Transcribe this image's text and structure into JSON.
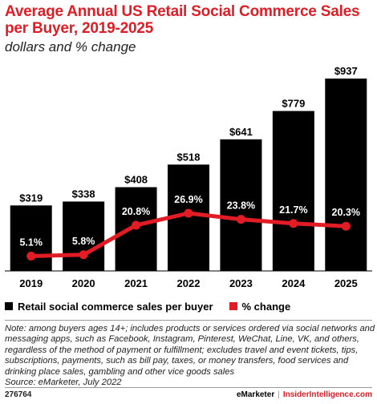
{
  "chart_data": {
    "type": "bar",
    "title": "Average Annual US Retail Social Commerce Sales per Buyer, 2019-2025",
    "subtitle": "dollars and % change",
    "categories": [
      "2019",
      "2020",
      "2021",
      "2022",
      "2023",
      "2024",
      "2025"
    ],
    "series": [
      {
        "name": "Retail social commerce sales per buyer",
        "type": "bar",
        "values": [
          319,
          338,
          408,
          518,
          641,
          779,
          937
        ],
        "labels": [
          "$319",
          "$338",
          "$408",
          "$518",
          "$641",
          "$779",
          "$937"
        ],
        "color": "#000000"
      },
      {
        "name": "% change",
        "type": "line",
        "values": [
          5.1,
          5.8,
          20.8,
          26.9,
          23.8,
          21.7,
          20.3
        ],
        "labels": [
          "5.1%",
          "5.8%",
          "20.8%",
          "26.9%",
          "23.8%",
          "21.7%",
          "20.3%"
        ],
        "color": "#e21c24"
      }
    ],
    "legend_position": "bottom-left",
    "grid": false
  },
  "note": "Note: among buyers ages 14+; includes products or services ordered via social networks and messaging apps, such as Facebook, Instagram, Pinterest, WeChat, Line, VK, and others, regardless of the method of payment or fulfillment; excludes travel and event tickets, tips, subscriptions, payments, such as bill pay, taxes, or money transfers, food services and drinking place sales, gambling and other vice goods sales",
  "source": "Source: eMarketer, July 2022",
  "footer": {
    "code": "276764",
    "brand1": "eMarketer",
    "separator": "|",
    "brand2": "InsiderIntelligence.com"
  }
}
